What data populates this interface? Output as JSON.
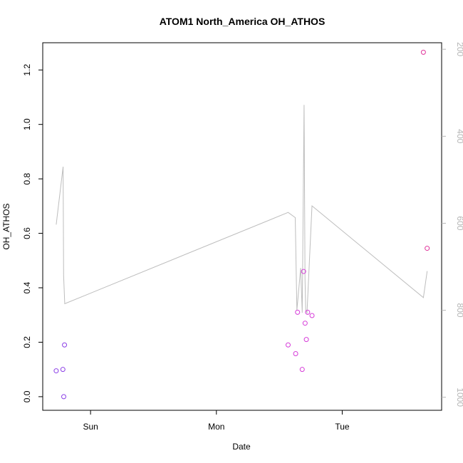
{
  "chart_data": {
    "type": "scatter",
    "title": "ATOM1 North_America OH_ATHOS",
    "xlabel": "Date",
    "ylabel": "OH_ATHOS",
    "x_ticks": [
      {
        "value": 1,
        "label": "Sun"
      },
      {
        "value": 2,
        "label": "Mon"
      },
      {
        "value": 3,
        "label": "Tue"
      }
    ],
    "xlim": [
      0.62,
      3.79
    ],
    "ylim": [
      -0.05,
      1.3
    ],
    "y_ticks": [
      0.0,
      0.2,
      0.4,
      0.6,
      0.8,
      1.0,
      1.2
    ],
    "y2lim": [
      1030,
      185
    ],
    "y2_ticks": [
      200,
      400,
      600,
      800,
      1000
    ],
    "colors": {
      "points": "#cc33ee",
      "line": "#bdbdbd",
      "axis_right": "#b5b5b5"
    },
    "points": [
      {
        "x": 0.727,
        "y": 0.095,
        "color": "#8b3ee6"
      },
      {
        "x": 0.78,
        "y": 0.1,
        "color": "#8b3ee6"
      },
      {
        "x": 0.787,
        "y": 0.0,
        "color": "#8b3ee6"
      },
      {
        "x": 0.793,
        "y": 0.19,
        "color": "#8b3ee6"
      },
      {
        "x": 2.57,
        "y": 0.19,
        "color": "#d63cd9"
      },
      {
        "x": 2.63,
        "y": 0.158,
        "color": "#d63cd9"
      },
      {
        "x": 2.645,
        "y": 0.31,
        "color": "#d63cd9"
      },
      {
        "x": 2.682,
        "y": 0.1,
        "color": "#d63cd9"
      },
      {
        "x": 2.693,
        "y": 0.46,
        "color": "#d63cd9"
      },
      {
        "x": 2.705,
        "y": 0.27,
        "color": "#d63cd9"
      },
      {
        "x": 2.715,
        "y": 0.21,
        "color": "#d63cd9"
      },
      {
        "x": 2.725,
        "y": 0.31,
        "color": "#d63cd9"
      },
      {
        "x": 2.76,
        "y": 0.298,
        "color": "#d63cd9"
      },
      {
        "x": 3.645,
        "y": 1.265,
        "color": "#e0349a"
      },
      {
        "x": 3.675,
        "y": 0.545,
        "color": "#e0349a"
      }
    ],
    "secondary_series": {
      "axis": "right",
      "points": [
        [
          0.727,
          603
        ],
        [
          0.782,
          470
        ],
        [
          0.786,
          720
        ],
        [
          0.795,
          785
        ],
        [
          2.57,
          575
        ],
        [
          2.627,
          587
        ],
        [
          2.64,
          800
        ],
        [
          2.67,
          703
        ],
        [
          2.682,
          806
        ],
        [
          2.697,
          328
        ],
        [
          2.704,
          727
        ],
        [
          2.71,
          800
        ],
        [
          2.72,
          806
        ],
        [
          2.76,
          560
        ],
        [
          3.645,
          771
        ],
        [
          3.675,
          710
        ]
      ]
    }
  }
}
